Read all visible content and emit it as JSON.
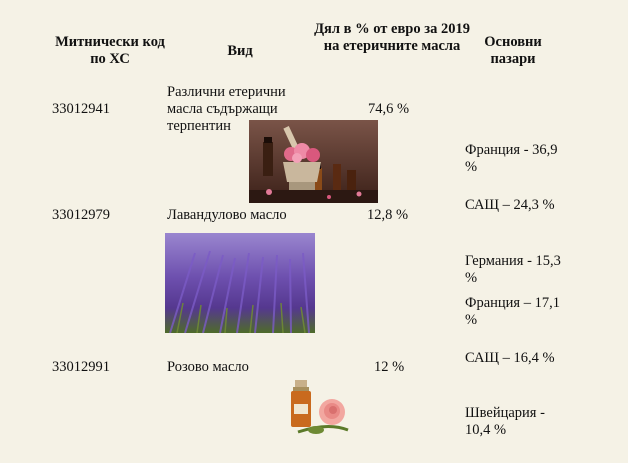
{
  "header": {
    "code": "Митнически код по ХС",
    "kind": "Вид",
    "share": "Дял в % от евро за 2019 на етеричните масла",
    "markets": "Основни пазари"
  },
  "rows": [
    {
      "code": "33012941",
      "kind": "Различни етерични масла съдържащи терпентин",
      "share": "74,6 %"
    },
    {
      "code": "33012979",
      "kind": "Лавандулово масло",
      "share": "12,8 %"
    },
    {
      "code": "33012991",
      "kind": "Розово масло",
      "share": "12 %"
    }
  ],
  "markets": [
    "Франция - 36,9 %",
    "САЩ –  24,3 %",
    "Германия - 15,3 %",
    "Франция – 17,1 %",
    "САЩ – 16,4 %",
    "Швейцария - 10,4 %"
  ],
  "images": {
    "oils": "essential-oils-bottles-roses-photo",
    "lavender": "lavender-field-photo",
    "rose": "rose-oil-bottle-photo"
  },
  "colors": {
    "background": "#f5f2e6",
    "text": "#111111"
  }
}
